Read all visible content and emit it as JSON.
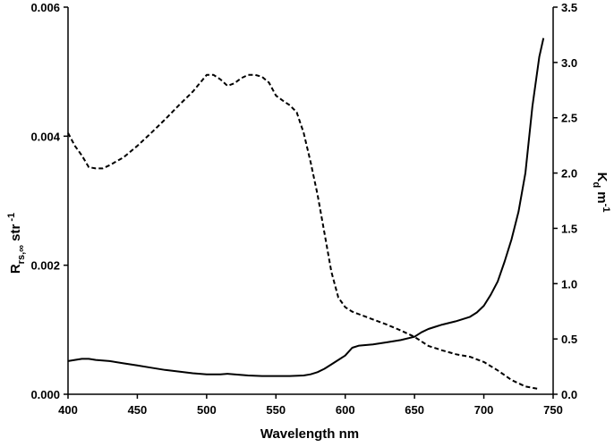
{
  "chart_data": {
    "type": "line",
    "title": "",
    "xlabel": "Wavelength nm",
    "ylabel_left": {
      "main": "R",
      "subscript": "rs,∞",
      "unit": " str",
      "exponent": " -1"
    },
    "ylabel_right": {
      "main": "K",
      "subscript": "d",
      "unit": " m",
      "exponent": "-1"
    },
    "xlim": [
      400,
      750
    ],
    "ylim_left": [
      0,
      0.006
    ],
    "ylim_right": [
      0,
      3.5
    ],
    "x_ticks": [
      400,
      450,
      500,
      550,
      600,
      650,
      700,
      750
    ],
    "x_tick_labels": [
      "400",
      "450",
      "500",
      "550",
      "600",
      "650",
      "700",
      "750"
    ],
    "y_left_ticks": [
      0,
      0.002,
      0.004,
      0.006
    ],
    "y_left_tick_labels": [
      "0.000",
      "0.002",
      "0.004",
      "0.006"
    ],
    "y_right_ticks": [
      0,
      0.5,
      1.0,
      1.5,
      2.0,
      2.5,
      3.0,
      3.5
    ],
    "y_right_tick_labels": [
      "0.0",
      "0.5",
      "1.0",
      "1.5",
      "2.0",
      "2.5",
      "3.0",
      "3.5"
    ],
    "grid": false,
    "legend": "none",
    "series": [
      {
        "axis": "left",
        "style": "dashed",
        "color": "#000000",
        "x": [
          400,
          405,
          410,
          415,
          420,
          425,
          430,
          440,
          450,
          460,
          470,
          480,
          490,
          495,
          500,
          505,
          510,
          515,
          520,
          525,
          530,
          535,
          540,
          545,
          550,
          555,
          560,
          565,
          570,
          575,
          580,
          585,
          590,
          595,
          600,
          605,
          610,
          620,
          630,
          640,
          650,
          660,
          670,
          680,
          690,
          700,
          710,
          720,
          730,
          740
        ],
        "values": [
          0.00405,
          0.00385,
          0.0037,
          0.00352,
          0.0035,
          0.0035,
          0.00355,
          0.00367,
          0.00385,
          0.00405,
          0.00426,
          0.00448,
          0.00469,
          0.00482,
          0.00495,
          0.00495,
          0.00488,
          0.00478,
          0.00482,
          0.0049,
          0.00495,
          0.00495,
          0.00492,
          0.00483,
          0.00463,
          0.00455,
          0.00448,
          0.00437,
          0.00405,
          0.0036,
          0.0031,
          0.0025,
          0.0019,
          0.0015,
          0.00135,
          0.00128,
          0.00124,
          0.00116,
          0.00108,
          0.00099,
          0.00089,
          0.00075,
          0.00068,
          0.00062,
          0.00058,
          0.0005,
          0.00037,
          0.00022,
          0.00012,
          8e-05
        ]
      },
      {
        "axis": "right",
        "style": "solid",
        "color": "#000000",
        "x": [
          400,
          405,
          410,
          415,
          420,
          430,
          440,
          450,
          460,
          470,
          480,
          490,
          500,
          510,
          515,
          520,
          530,
          540,
          550,
          560,
          570,
          575,
          580,
          585,
          590,
          595,
          600,
          605,
          610,
          620,
          630,
          640,
          650,
          655,
          660,
          665,
          670,
          680,
          690,
          695,
          700,
          705,
          710,
          715,
          720,
          725,
          730,
          735,
          740,
          743
        ],
        "values": [
          0.3,
          0.31,
          0.32,
          0.32,
          0.31,
          0.3,
          0.28,
          0.26,
          0.24,
          0.22,
          0.205,
          0.19,
          0.18,
          0.18,
          0.185,
          0.18,
          0.17,
          0.165,
          0.165,
          0.165,
          0.17,
          0.18,
          0.2,
          0.23,
          0.27,
          0.31,
          0.35,
          0.42,
          0.44,
          0.45,
          0.47,
          0.49,
          0.52,
          0.56,
          0.59,
          0.61,
          0.63,
          0.66,
          0.7,
          0.74,
          0.8,
          0.9,
          1.02,
          1.2,
          1.4,
          1.65,
          2.0,
          2.6,
          3.05,
          3.22
        ]
      }
    ]
  }
}
